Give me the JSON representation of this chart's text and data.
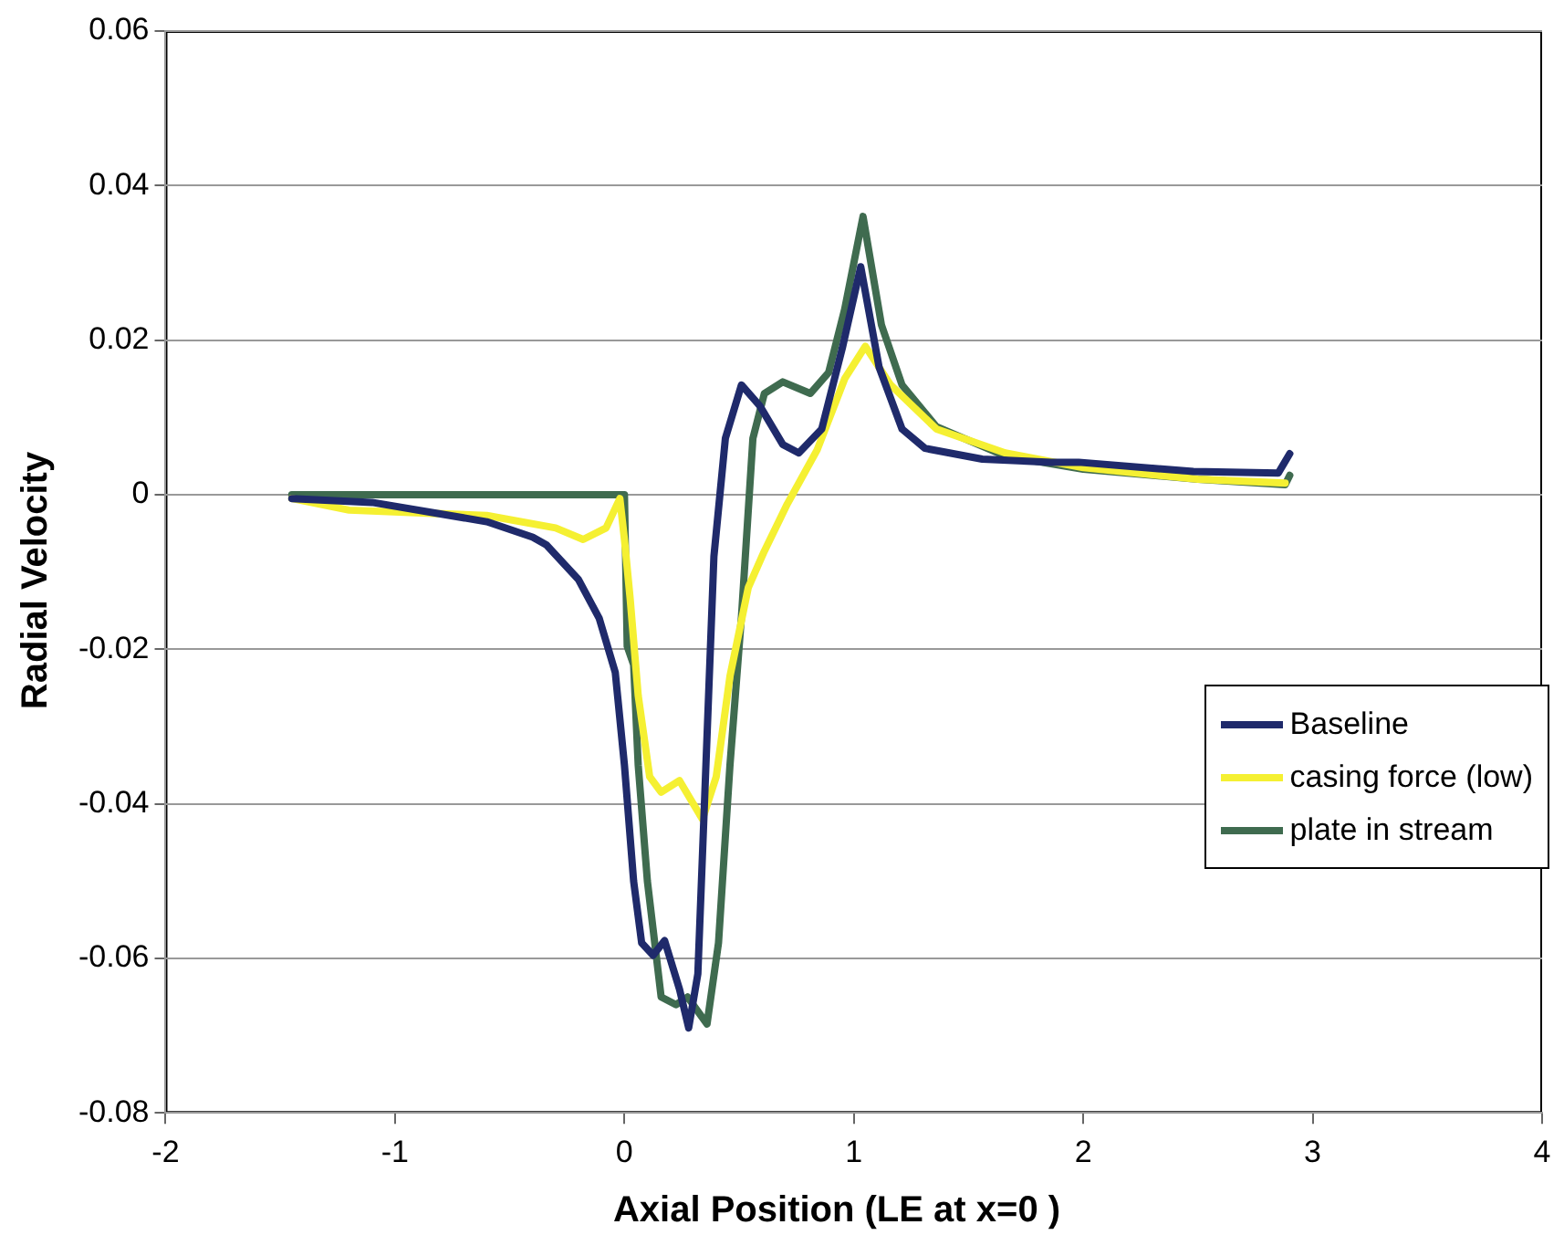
{
  "chart_data": {
    "type": "line",
    "xlabel": "Axial Position (LE at x=0 )",
    "ylabel": "Radial Velocity",
    "xlim": [
      -2,
      4
    ],
    "xticks": [
      -2,
      -1,
      0,
      1,
      2,
      3,
      4
    ],
    "ylim": [
      -0.08,
      0.06
    ],
    "yticks": [
      -0.08,
      -0.06,
      -0.04,
      -0.02,
      0,
      0.02,
      0.04,
      0.06
    ],
    "grid": "y",
    "legend": "right",
    "marker": "none",
    "line_style": "solid",
    "series": [
      {
        "name": "Baseline",
        "color": "#1f2a6b",
        "x": [
          -1.45,
          -1.1,
          -0.6,
          -0.4,
          -0.34,
          -0.2,
          -0.11,
          -0.04,
          0,
          0.04,
          0.075,
          0.125,
          0.175,
          0.24,
          0.28,
          0.32,
          0.35,
          0.39,
          0.44,
          0.51,
          0.59,
          0.69,
          0.76,
          0.86,
          0.95,
          1.03,
          1.11,
          1.21,
          1.31,
          1.56,
          1.86,
          1.98,
          2.48,
          2.85,
          2.9
        ],
        "values": [
          -0.0005,
          -0.001,
          -0.0035,
          -0.0055,
          -0.0065,
          -0.011,
          -0.016,
          -0.023,
          -0.035,
          -0.05,
          -0.058,
          -0.0596,
          -0.0577,
          -0.064,
          -0.069,
          -0.062,
          -0.039,
          -0.008,
          0.0073,
          0.0142,
          0.0115,
          0.0065,
          0.0054,
          0.0085,
          0.019,
          0.0295,
          0.0165,
          0.0085,
          0.006,
          0.0046,
          0.0042,
          0.0042,
          0.003,
          0.0028,
          0.0053
        ]
      },
      {
        "name": "casing force (low)",
        "color": "#f5f032",
        "x": [
          -1.45,
          -1.2,
          -0.6,
          -0.3,
          -0.18,
          -0.08,
          -0.02,
          0,
          0.025,
          0.06,
          0.11,
          0.16,
          0.24,
          0.34,
          0.4,
          0.46,
          0.54,
          0.61,
          0.71,
          0.84,
          0.96,
          1.05,
          1.16,
          1.36,
          1.66,
          2,
          2.5,
          2.88
        ],
        "values": [
          -0.0005,
          -0.002,
          -0.0027,
          -0.0043,
          -0.0058,
          -0.0043,
          -0.0005,
          -0.0058,
          -0.0135,
          -0.026,
          -0.0365,
          -0.0385,
          -0.037,
          -0.042,
          -0.0365,
          -0.0235,
          -0.012,
          -0.0073,
          -0.0012,
          0.0058,
          0.015,
          0.0192,
          0.0142,
          0.0085,
          0.0054,
          0.0035,
          0.002,
          0.0015
        ]
      },
      {
        "name": "plate in stream",
        "color": "#3f6b4f",
        "x": [
          -1.45,
          -0.5,
          0,
          0.012,
          0.04,
          0.06,
          0.1,
          0.16,
          0.225,
          0.275,
          0.36,
          0.41,
          0.46,
          0.51,
          0.56,
          0.61,
          0.69,
          0.81,
          0.89,
          0.96,
          1.04,
          1.12,
          1.21,
          1.36,
          1.66,
          2,
          2.5,
          2.88,
          2.9
        ],
        "values": [
          0,
          0,
          0,
          -0.0196,
          -0.022,
          -0.035,
          -0.05,
          -0.065,
          -0.066,
          -0.065,
          -0.0685,
          -0.058,
          -0.035,
          -0.0158,
          0.0073,
          0.0131,
          0.0146,
          0.0131,
          0.0158,
          0.024,
          0.036,
          0.022,
          0.0142,
          0.0088,
          0.005,
          0.0033,
          0.002,
          0.0013,
          0.0025
        ]
      }
    ]
  }
}
